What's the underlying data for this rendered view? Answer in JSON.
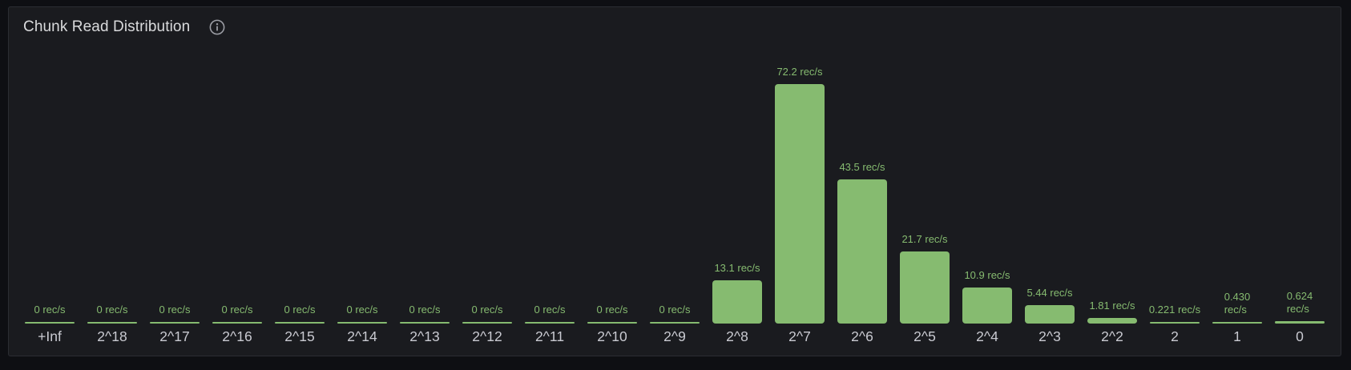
{
  "panel": {
    "title": "Chunk Read Distribution",
    "info_icon": "info-circle-icon"
  },
  "colors": {
    "outer_background": "#0E0F13",
    "panel_background": "#1A1B1F",
    "panel_border": "#2B2D33",
    "bar": "#86BB70",
    "value_label": "#86BB70",
    "axis_label": "#C9CAD1",
    "title": "#D9DADC"
  },
  "chart_data": {
    "type": "bar",
    "title": "Chunk Read Distribution",
    "unit": "rec/s",
    "orientation": "vertical",
    "grid": false,
    "legend": false,
    "ylim": [
      0,
      75
    ],
    "categories": [
      "+Inf",
      "2^18",
      "2^17",
      "2^16",
      "2^15",
      "2^14",
      "2^13",
      "2^12",
      "2^11",
      "2^10",
      "2^9",
      "2^8",
      "2^7",
      "2^6",
      "2^5",
      "2^4",
      "2^3",
      "2^2",
      "2",
      "1",
      "0"
    ],
    "values": [
      0,
      0,
      0,
      0,
      0,
      0,
      0,
      0,
      0,
      0,
      0,
      13.1,
      72.2,
      43.5,
      21.7,
      10.9,
      5.44,
      1.81,
      0.221,
      0.43,
      0.624
    ],
    "value_labels": [
      "0 rec/s",
      "0 rec/s",
      "0 rec/s",
      "0 rec/s",
      "0 rec/s",
      "0 rec/s",
      "0 rec/s",
      "0 rec/s",
      "0 rec/s",
      "0 rec/s",
      "0 rec/s",
      "13.1 rec/s",
      "72.2 rec/s",
      "43.5 rec/s",
      "21.7 rec/s",
      "10.9 rec/s",
      "5.44 rec/s",
      "1.81 rec/s",
      "0.221 rec/s",
      "0.430\nrec/s",
      "0.624\nrec/s"
    ]
  }
}
